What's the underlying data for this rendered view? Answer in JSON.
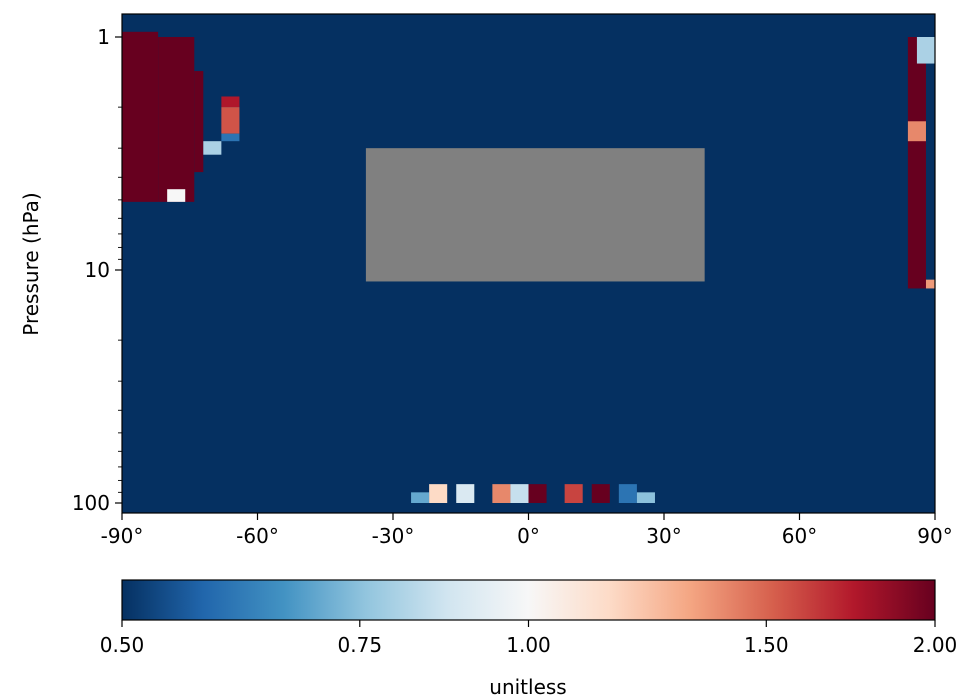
{
  "chart_data": {
    "type": "heatmap",
    "title": "",
    "xlabel": "",
    "ylabel": "Pressure (hPa)",
    "x_ticks": [
      "-90°",
      "-60°",
      "-30°",
      "0°",
      "30°",
      "60°",
      "90°"
    ],
    "y_ticks": [
      "1",
      "10",
      "100"
    ],
    "xlim": [
      -90,
      90
    ],
    "ylim": [
      100,
      0.9
    ],
    "y_scale": "log",
    "background_value": 0.5,
    "missing_regions": [
      {
        "lat": [
          -36,
          39
        ],
        "p": [
          3.0,
          11.2
        ]
      }
    ],
    "cells": [
      {
        "lat": -90,
        "p_top": 0.95,
        "p_bot": 5.1,
        "value": 2.0
      },
      {
        "lat": -82,
        "p_top": 1.0,
        "p_bot": 5.1,
        "value": 2.0
      },
      {
        "lat": -74,
        "p_top": 1.4,
        "p_bot": 3.8,
        "value": 2.0
      },
      {
        "lat": -72,
        "p_top": 2.8,
        "p_bot": 3.2,
        "value": 0.8
      },
      {
        "lat": -68,
        "p_top": 1.8,
        "p_bot": 2.0,
        "value": 1.75
      },
      {
        "lat": -68,
        "p_top": 2.0,
        "p_bot": 2.6,
        "value": 1.55
      },
      {
        "lat": -68,
        "p_top": 2.6,
        "p_bot": 2.8,
        "value": 0.6
      },
      {
        "lat": -80,
        "p_top": 4.5,
        "p_bot": 5.1,
        "value": 1.0
      },
      {
        "lat": 84,
        "p_top": 1.0,
        "p_bot": 12.0,
        "value": 2.0
      },
      {
        "lat": 86,
        "p_top": 1.0,
        "p_bot": 1.3,
        "value": 0.8
      },
      {
        "lat": 84,
        "p_top": 2.3,
        "p_bot": 2.8,
        "value": 1.4
      },
      {
        "lat": 88,
        "p_top": 11.0,
        "p_bot": 12.0,
        "value": 1.35
      },
      {
        "lat": -26,
        "p_top": 90,
        "p_bot": 100,
        "value": 0.7
      },
      {
        "lat": -22,
        "p_top": 83,
        "p_bot": 100,
        "value": 1.15
      },
      {
        "lat": -16,
        "p_top": 83,
        "p_bot": 100,
        "value": 0.9
      },
      {
        "lat": -8,
        "p_top": 83,
        "p_bot": 100,
        "value": 1.4
      },
      {
        "lat": -4,
        "p_top": 83,
        "p_bot": 100,
        "value": 0.85
      },
      {
        "lat": 0,
        "p_top": 83,
        "p_bot": 100,
        "value": 2.0
      },
      {
        "lat": 8,
        "p_top": 83,
        "p_bot": 100,
        "value": 1.6
      },
      {
        "lat": 14,
        "p_top": 83,
        "p_bot": 100,
        "value": 2.0
      },
      {
        "lat": 20,
        "p_top": 83,
        "p_bot": 100,
        "value": 0.6
      },
      {
        "lat": 24,
        "p_top": 90,
        "p_bot": 100,
        "value": 0.75
      }
    ],
    "colorbar": {
      "label": "unitless",
      "ticks": [
        "0.50",
        "0.75",
        "1.00",
        "1.50",
        "2.00"
      ],
      "range": [
        0.5,
        2.0
      ],
      "scale": "log",
      "colormap": "RdBu_r",
      "stops": [
        "#053061",
        "#2166ac",
        "#4393c3",
        "#92c5de",
        "#d1e5f0",
        "#f7f7f7",
        "#fddbc7",
        "#f4a582",
        "#d6604d",
        "#b2182b",
        "#67001f"
      ]
    },
    "missing_color": "#808080"
  }
}
